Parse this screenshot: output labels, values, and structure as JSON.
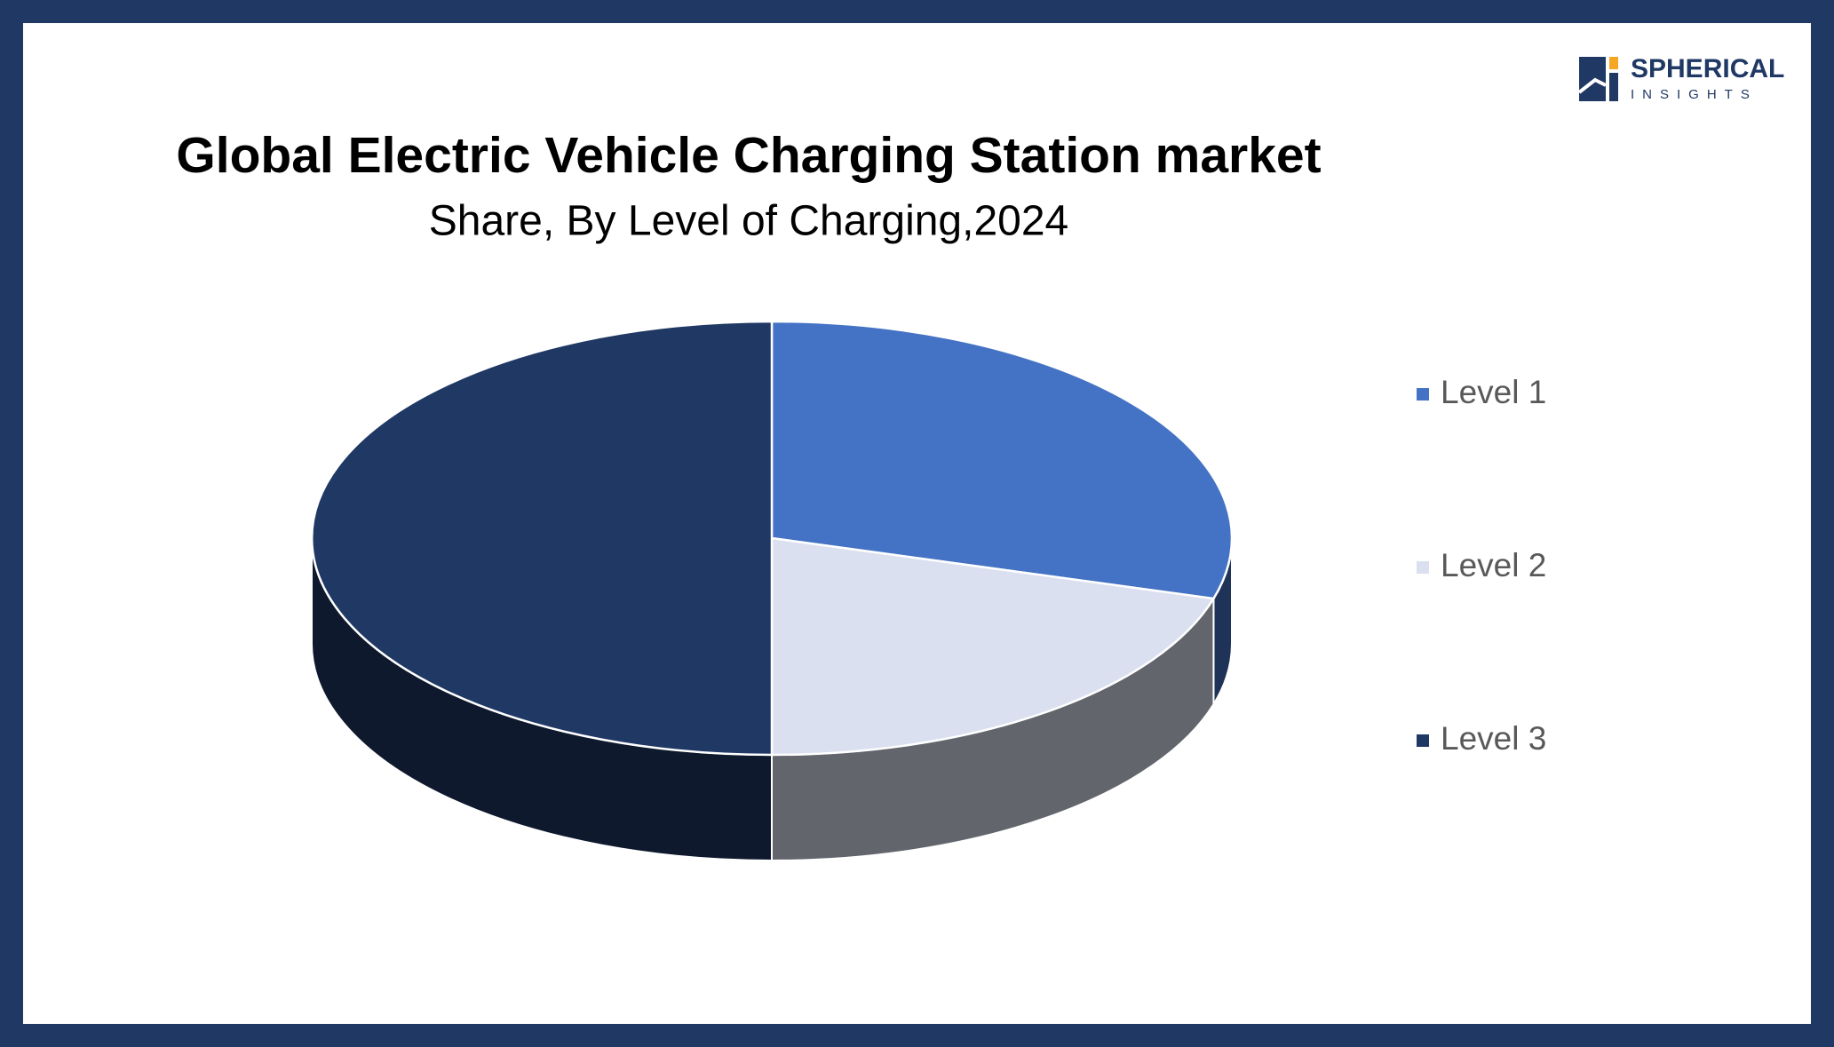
{
  "logo": {
    "name": "SPHERICAL",
    "tagline": "INSIGHTS"
  },
  "chart_data": {
    "type": "pie3d",
    "title": "Global Electric Vehicle Charging Station market",
    "subtitle": "Share, By Level of Charging,2024",
    "categories": [
      "Level 1",
      "Level 2",
      "Level 3"
    ],
    "values": [
      29.5,
      20.5,
      50
    ],
    "colors": [
      "#4472c4",
      "#dae0f0",
      "#1f3864"
    ],
    "legend": "right"
  }
}
